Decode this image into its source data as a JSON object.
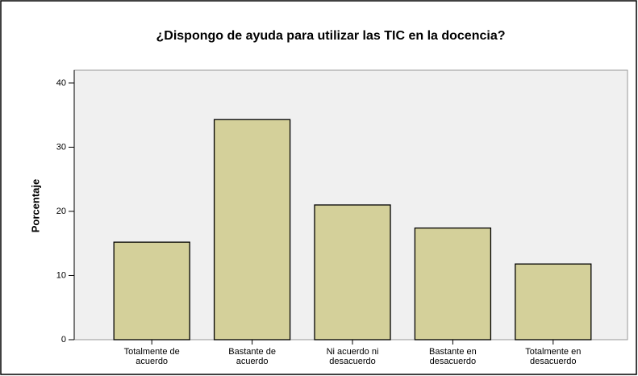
{
  "chart_data": {
    "type": "bar",
    "title": "¿Dispongo de ayuda para utilizar las TIC en la docencia?",
    "y_label": "Porcentaje",
    "categories": [
      "Totalmente de acuerdo",
      "Bastante de acuerdo",
      "Ni acuerdo ni desacuerdo",
      "Bastante en desacuerdo",
      "Totalmente en desacuerdo"
    ],
    "values": [
      15.2,
      34.3,
      21.0,
      17.4,
      11.8
    ],
    "color": "#d4d09a",
    "ylim": [
      0,
      42
    ],
    "yticks": [
      0,
      10,
      20,
      30,
      40
    ],
    "grid": false
  }
}
